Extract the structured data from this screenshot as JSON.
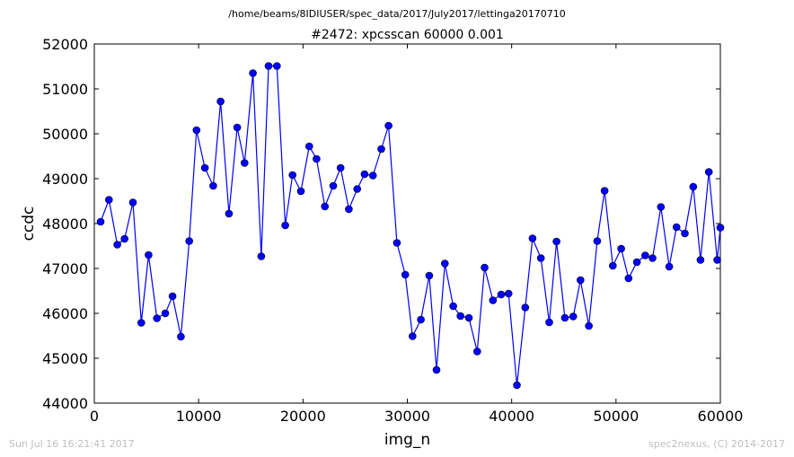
{
  "header": {
    "file_path": "/home/beams/8IDIUSER/spec_data/2017/July2017/lettinga20170710"
  },
  "footer": {
    "timestamp": "Sun Jul 16 16:21:41 2017",
    "credit": "spec2nexus, (C) 2014-2017"
  },
  "colors": {
    "series": "#0000ff",
    "marker": "#0000ff",
    "marker_edge": "#000000",
    "footer_text": "#bfbfbf"
  },
  "chart_data": {
    "type": "line",
    "title": "#2472: xpcsscan 60000 0.001",
    "xlabel": "img_n",
    "ylabel": "ccdc",
    "xlim": [
      0,
      60000
    ],
    "ylim": [
      44000,
      52000
    ],
    "xticks": [
      0,
      10000,
      20000,
      30000,
      40000,
      50000,
      60000
    ],
    "yticks": [
      44000,
      45000,
      46000,
      47000,
      48000,
      49000,
      50000,
      51000,
      52000
    ],
    "grid": false,
    "marker": "circle",
    "series": [
      {
        "x": [
          600,
          1400,
          2200,
          2900,
          3700,
          4500,
          5200,
          6000,
          6800,
          7500,
          8300,
          9100,
          9800,
          10600,
          11400,
          12100,
          12900,
          13700,
          14400,
          15200,
          16000,
          16700,
          17500,
          18300,
          19000,
          19800,
          20600,
          21300,
          22100,
          22900,
          23600,
          24400,
          25200,
          25900,
          26700,
          27500,
          28200,
          29000,
          29800,
          30500,
          31300,
          32100,
          32800,
          33600,
          34400,
          35100,
          35900,
          36700,
          37400,
          38200,
          39000,
          39700,
          40500,
          41300,
          42000,
          42800,
          43600,
          44300,
          45100,
          45900,
          46600,
          47400,
          48200,
          48900,
          49700,
          50500,
          51200,
          52000,
          52800,
          53500,
          54300,
          55100,
          55800,
          56600,
          57400,
          58100,
          58900,
          59700,
          60000
        ],
        "y": [
          48040,
          48530,
          47530,
          47660,
          48470,
          45790,
          47300,
          45890,
          46000,
          46380,
          45480,
          47610,
          50080,
          49240,
          48840,
          50720,
          48220,
          50140,
          49350,
          51350,
          47270,
          51510,
          51510,
          47960,
          49080,
          48720,
          49720,
          49440,
          48380,
          48840,
          49240,
          48320,
          48770,
          49100,
          49070,
          49660,
          50180,
          47570,
          46860,
          45490,
          45860,
          46840,
          44740,
          47110,
          46160,
          45940,
          45900,
          45150,
          47020,
          46290,
          46420,
          46440,
          44400,
          46130,
          47670,
          47230,
          45800,
          47600,
          45900,
          45930,
          46740,
          45720,
          47610,
          48730,
          47060,
          47440,
          46780,
          47140,
          47290,
          47230,
          48370,
          47040,
          47920,
          47780,
          48820,
          47190,
          49150,
          47190,
          47910
        ]
      }
    ]
  }
}
